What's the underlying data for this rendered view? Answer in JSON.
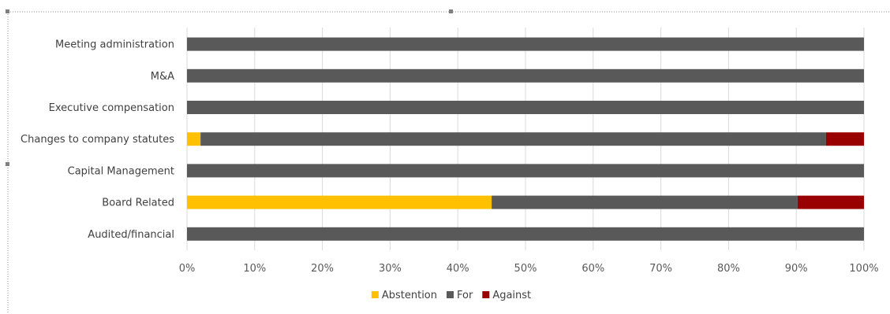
{
  "chart_data": {
    "type": "bar",
    "orientation": "horizontal",
    "stacked": true,
    "normalized_percent": true,
    "categories": [
      "Meeting administration",
      "M&A",
      "Executive compensation",
      "Changes to company statutes",
      "Capital Management",
      "Board Related",
      "Audited/financial"
    ],
    "series": [
      {
        "name": "Abstention",
        "color": "#FFC000",
        "values": [
          0,
          0,
          0,
          2,
          0,
          45,
          0
        ]
      },
      {
        "name": "For",
        "color": "#595959",
        "values": [
          100,
          100,
          100,
          92.4,
          100,
          45.2,
          100
        ]
      },
      {
        "name": "Against",
        "color": "#990000",
        "values": [
          0,
          0,
          0,
          5.6,
          0,
          9.8,
          0
        ]
      }
    ],
    "x_ticks": [
      "0%",
      "10%",
      "20%",
      "30%",
      "40%",
      "50%",
      "60%",
      "70%",
      "80%",
      "90%",
      "100%"
    ],
    "xlim": [
      0,
      100
    ],
    "grid": true,
    "legend_position": "bottom"
  }
}
